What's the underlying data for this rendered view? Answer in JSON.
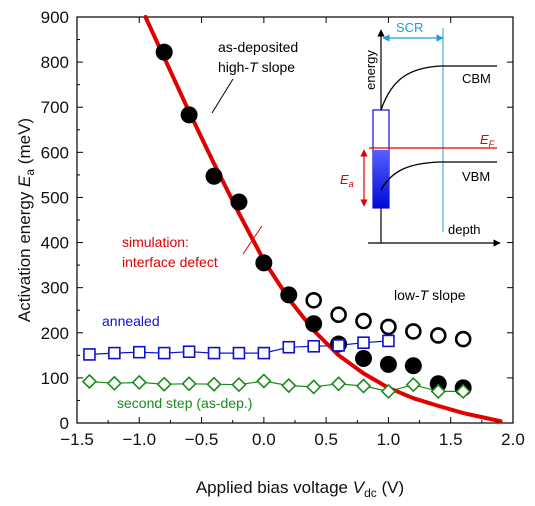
{
  "chart_data": {
    "type": "scatter",
    "xlabel_main": "Applied bias voltage ",
    "xlabel_var": "V",
    "xlabel_sub": "dc",
    "xlabel_unit": " (V)",
    "ylabel_main": "Activation energy ",
    "ylabel_var": "E",
    "ylabel_sub": "a",
    "ylabel_unit": " (meV)",
    "xlim": [
      -1.5,
      2.0
    ],
    "ylim": [
      0,
      900
    ],
    "xticks": [
      -1.5,
      -1.0,
      -0.5,
      0.0,
      0.5,
      1.0,
      1.5,
      2.0
    ],
    "xtick_labels": [
      "−1.5",
      "−1.0",
      "−0.5",
      "0.0",
      "0.5",
      "1.0",
      "1.5",
      "2.0"
    ],
    "yticks": [
      0,
      100,
      200,
      300,
      400,
      500,
      600,
      700,
      800,
      900
    ],
    "ytick_labels": [
      "0",
      "100",
      "200",
      "300",
      "400",
      "500",
      "600",
      "700",
      "800",
      "900"
    ],
    "series": [
      {
        "key": "high_t",
        "marker": "filled-circle",
        "color": "#000000",
        "x": [
          -0.8,
          -0.6,
          -0.4,
          -0.2,
          0.0,
          0.2,
          0.4,
          0.6,
          0.8,
          1.0,
          1.2,
          1.4,
          1.6
        ],
        "y": [
          822,
          683,
          547,
          490,
          355,
          284,
          220,
          175,
          143,
          130,
          127,
          87,
          78
        ]
      },
      {
        "key": "low_t",
        "marker": "open-circle",
        "color": "#000000",
        "x": [
          0.4,
          0.6,
          0.8,
          1.0,
          1.2,
          1.4,
          1.6
        ],
        "y": [
          272,
          240,
          226,
          213,
          203,
          194,
          186
        ]
      },
      {
        "key": "annealed",
        "marker": "open-square",
        "color": "#1010d0",
        "x": [
          -1.4,
          -1.2,
          -1.0,
          -0.8,
          -0.6,
          -0.4,
          -0.2,
          0.0,
          0.2,
          0.4,
          0.6,
          0.8,
          1.0
        ],
        "y": [
          152,
          155,
          157,
          155,
          158,
          155,
          155,
          155,
          168,
          170,
          172,
          178,
          182
        ]
      },
      {
        "key": "second_step",
        "marker": "open-diamond",
        "color": "#1a8a1a",
        "x": [
          -1.4,
          -1.2,
          -1.0,
          -0.8,
          -0.6,
          -0.4,
          -0.2,
          0.0,
          0.2,
          0.4,
          0.6,
          0.8,
          1.0,
          1.2,
          1.4,
          1.6
        ],
        "y": [
          92,
          88,
          90,
          86,
          87,
          86,
          85,
          93,
          83,
          80,
          87,
          82,
          70,
          85,
          70,
          70
        ]
      },
      {
        "key": "simulation",
        "marker": "line",
        "color": "#e00000",
        "x": [
          -0.95,
          -0.8,
          -0.6,
          -0.4,
          -0.2,
          0.0,
          0.2,
          0.4,
          0.6,
          0.8,
          1.0,
          1.2,
          1.4,
          1.6,
          1.8,
          1.9
        ],
        "y": [
          900,
          810,
          690,
          575,
          465,
          360,
          275,
          205,
          150,
          110,
          78,
          55,
          38,
          22,
          10,
          4
        ]
      }
    ],
    "annotations": {
      "high_t_line1": "as-deposited",
      "high_t_line2_pre": "high-",
      "high_t_line2_var": "T",
      "high_t_line2_post": " slope",
      "low_t_pre": "low-",
      "low_t_var": "T",
      "low_t_post": " slope",
      "annealed": "annealed",
      "second_step": "second step (as-dep.)",
      "simulation_line1": "simulation:",
      "simulation_line2": "interface defect"
    },
    "inset": {
      "ylabel": "energy",
      "xlabel": "depth",
      "scr": "SCR",
      "cbm": "CBM",
      "vbm": "VBM",
      "ef_var": "E",
      "ef_sub": "F",
      "ea_var": "E",
      "ea_sub": "a"
    }
  },
  "colors": {
    "simulation": "#e00000",
    "annealed": "#1010d0",
    "second_step": "#1a8a1a",
    "scr": "#1aa0d8",
    "fermi": "#e00000",
    "defect_fill": "#0a10e0"
  }
}
